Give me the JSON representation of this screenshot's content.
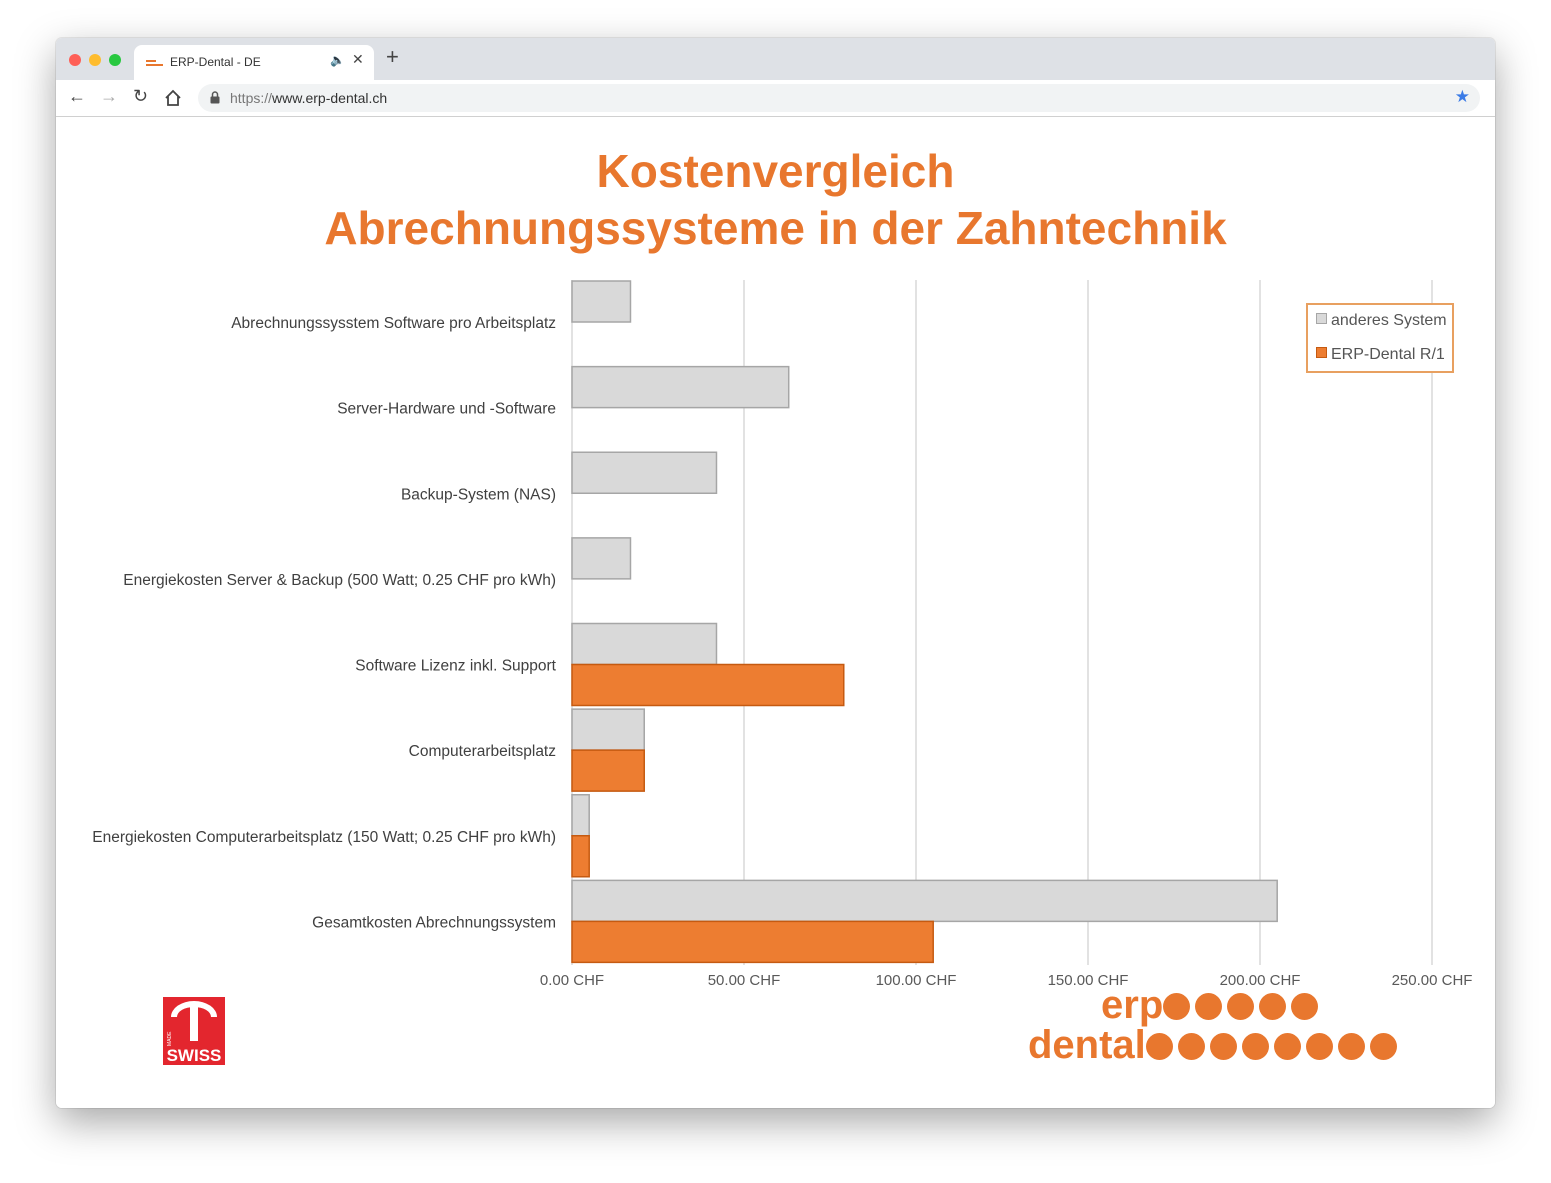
{
  "browser": {
    "tab_title": "ERP-Dental - DE",
    "audio_icon": "speaker-icon",
    "close_label": "✕",
    "new_tab_label": "+",
    "url_protocol": "https://",
    "url_host": "www.erp-dental.ch",
    "traffic_colors": [
      "#fe5f57",
      "#febc2e",
      "#28c840"
    ],
    "accent": "#e8772e"
  },
  "page": {
    "title_line1": "Kostenvergleich",
    "title_line2": "Abrechnungssysteme in der Zahntechnik",
    "logo_word1": "erp",
    "logo_word2": "dental",
    "logo_dots_line1": 5,
    "logo_dots_line2": 8,
    "badge_text": "SWISS",
    "badge_small": "MADE"
  },
  "chart_data": {
    "type": "bar",
    "orientation": "horizontal",
    "title": "Kostenvergleich Abrechnungssysteme in der Zahntechnik",
    "categories": [
      "Abrechnungssysstem Software pro Arbeitsplatz",
      "Server-Hardware und -Software",
      "Backup-System (NAS)",
      "Energiekosten Server & Backup (500 Watt; 0.25 CHF pro kWh)",
      "Software Lizenz inkl. Support",
      "Computerarbeitsplatz",
      "Energiekosten Computerarbeitsplatz (150 Watt; 0.25 CHF pro kWh)",
      "Gesamtkosten Abrechnungssystem"
    ],
    "series": [
      {
        "name": "anderes System",
        "color": "#d9d9d9",
        "stroke": "#a6a6a6",
        "values": [
          17,
          63,
          42,
          17,
          42,
          21,
          5,
          205
        ]
      },
      {
        "name": "ERP-Dental R/1",
        "color": "#ed7d31",
        "stroke": "#c55a11",
        "values": [
          0,
          0,
          0,
          0,
          79,
          21,
          5,
          105
        ]
      }
    ],
    "xlim": [
      0,
      250
    ],
    "xticks": [
      0,
      50,
      100,
      150,
      200,
      250
    ],
    "xtick_labels": [
      "0.00 CHF",
      "50.00 CHF",
      "100.00 CHF",
      "150.00 CHF",
      "200.00 CHF",
      "250.00 CHF"
    ],
    "grid": true,
    "legend_position": "top-right"
  }
}
